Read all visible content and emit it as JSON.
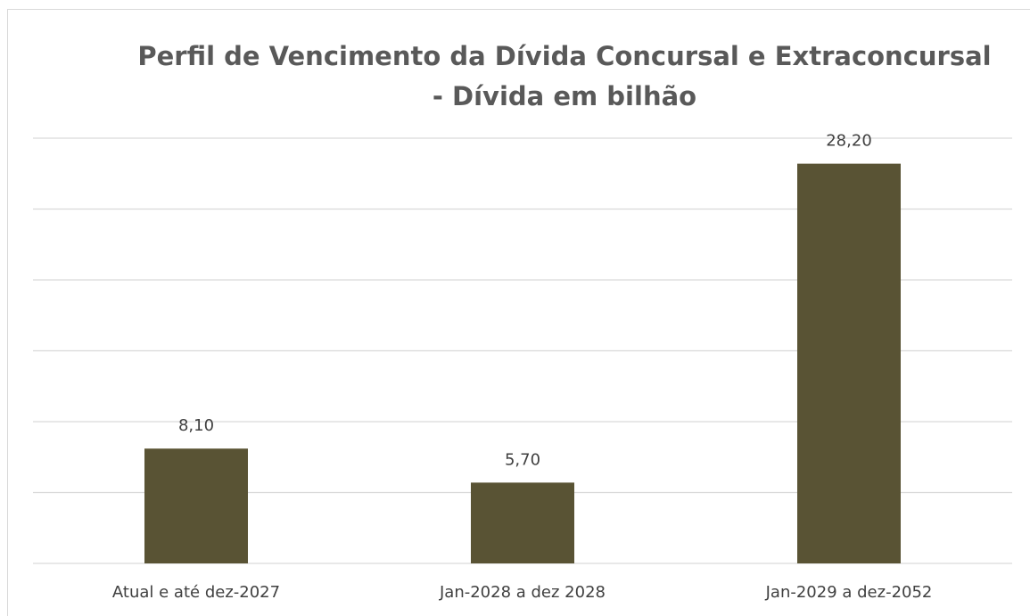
{
  "chart_data": {
    "type": "bar",
    "title": [
      "Perfil de Vencimento da Dívida Concursal e Extraconcursal",
      "- Dívida em bilhão"
    ],
    "categories": [
      "Atual e até dez-2027",
      "Jan-2028 a dez 2028",
      "Jan-2029 a dez-2052"
    ],
    "values": [
      8.1,
      5.7,
      28.2
    ],
    "value_labels": [
      "8,10",
      "5,70",
      "28,20"
    ],
    "color": "#595334",
    "ylim": [
      0,
      30
    ],
    "yticks": [
      0,
      5,
      10,
      15,
      20,
      25,
      30
    ],
    "grid": true
  }
}
